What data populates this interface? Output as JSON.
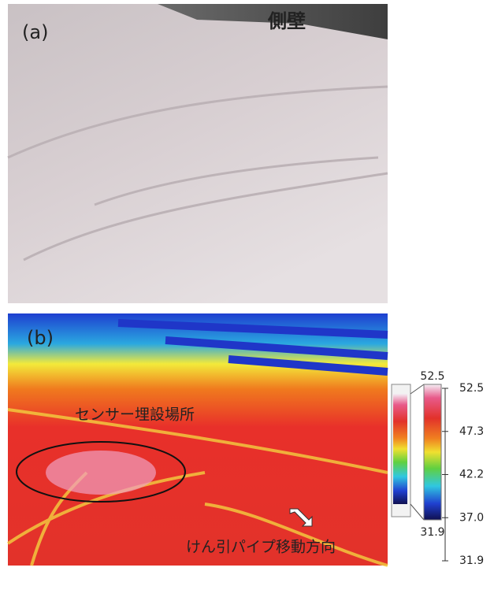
{
  "panel_a": {
    "label": "(a)",
    "caption": "側壁"
  },
  "panel_b": {
    "label": "(b)",
    "sensor_label": "センサー埋設場所",
    "direction_label": "けん引パイプ移動方向"
  },
  "color_scale": {
    "max_label": "52.5",
    "min_label": "31.9",
    "ticks": [
      "52.5",
      "47.3",
      "42.2",
      "37.0",
      "31.9"
    ]
  }
}
